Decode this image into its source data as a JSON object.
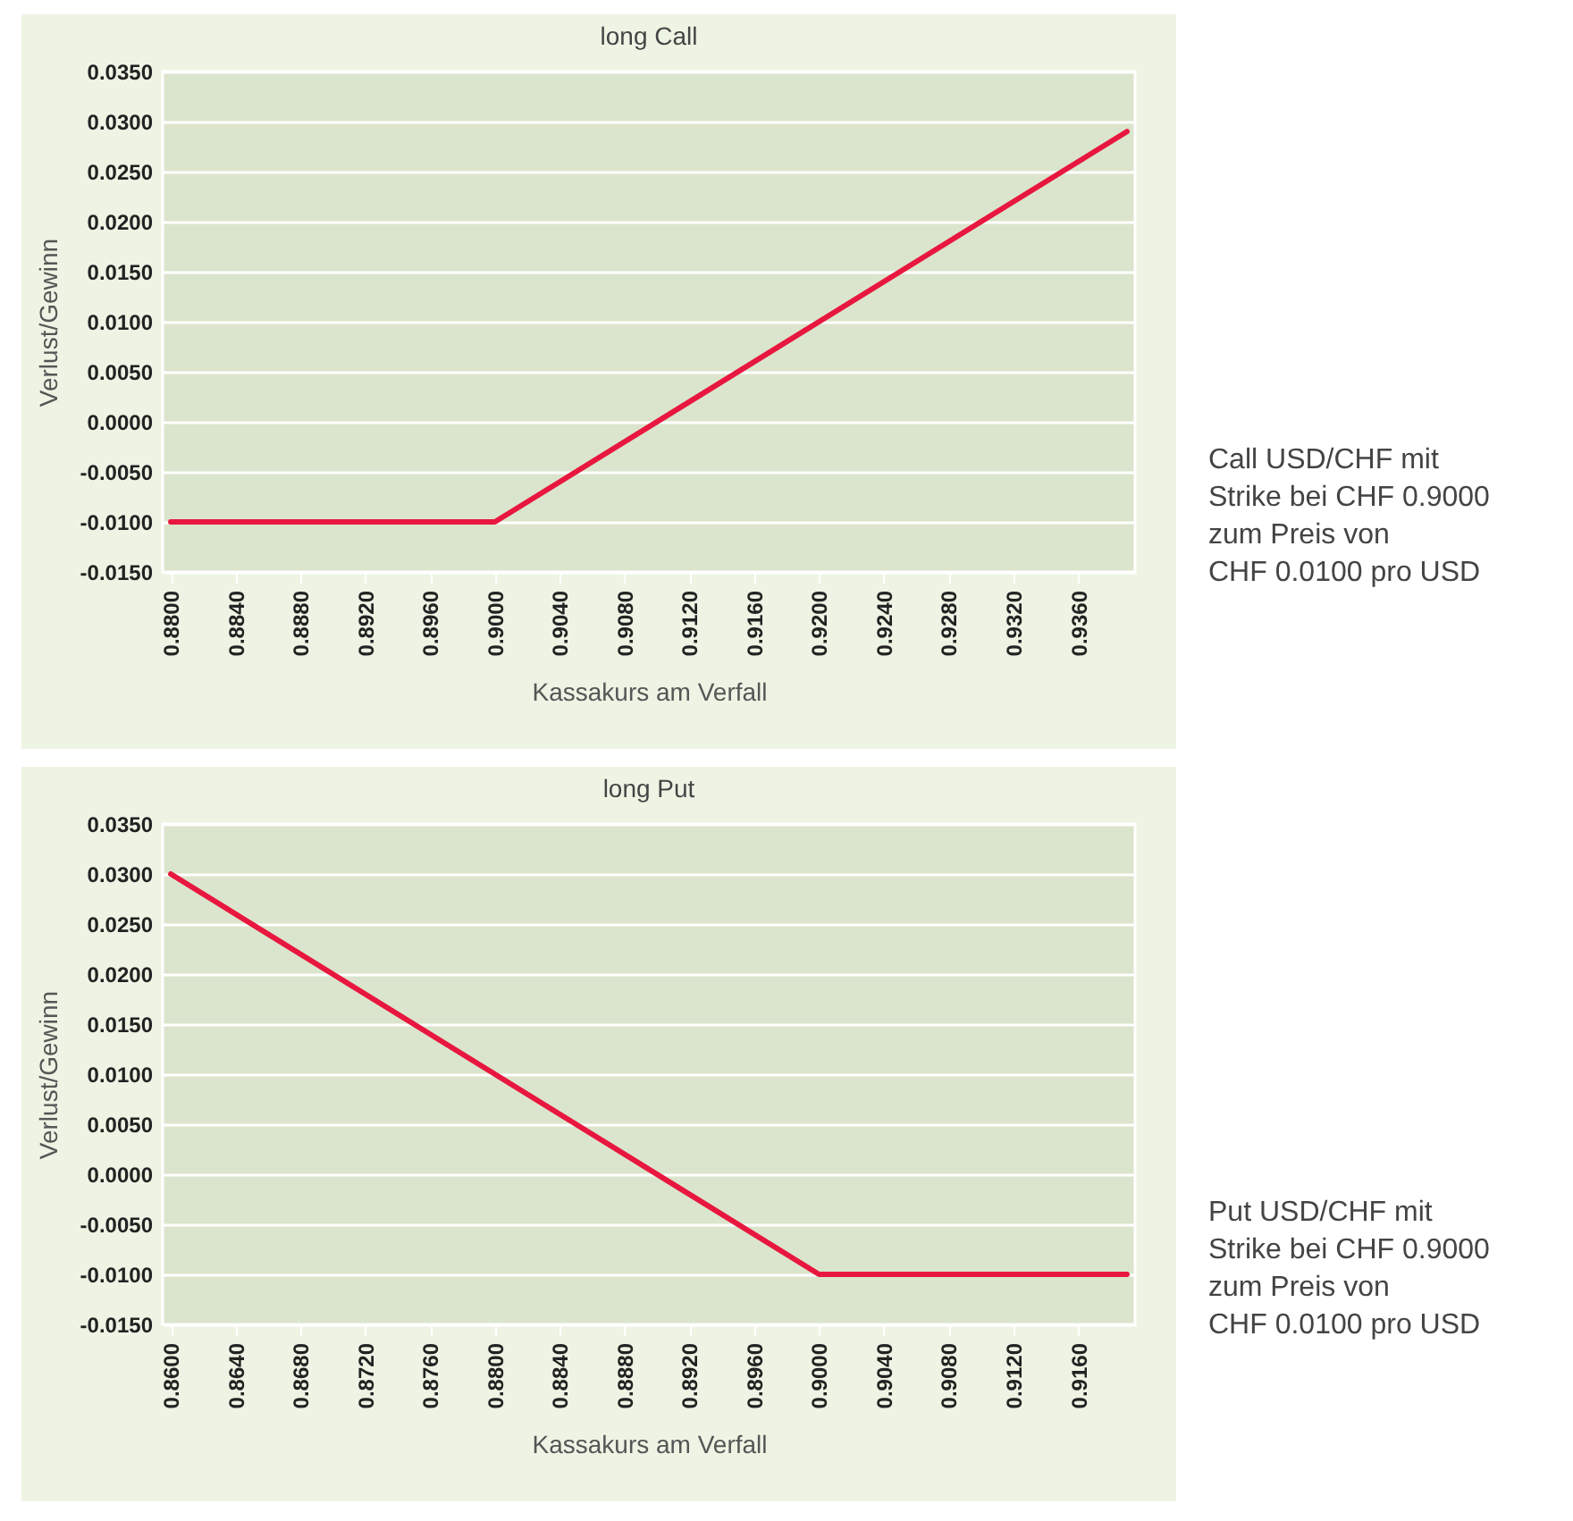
{
  "chart_data": [
    {
      "type": "line",
      "title": "long Call",
      "xlabel": "Kassakurs am Verfall",
      "ylabel": "Verlust/Gewinn",
      "x": [
        0.88,
        0.9,
        0.939
      ],
      "series": [
        {
          "color": "#e8173f",
          "values": [
            -0.01,
            -0.01,
            0.029
          ]
        }
      ],
      "xlim": [
        0.8795,
        0.9395
      ],
      "xticks": [
        {
          "value": 0.88,
          "label": "0.8800"
        },
        {
          "value": 0.884,
          "label": "0.8840"
        },
        {
          "value": 0.888,
          "label": "0.8880"
        },
        {
          "value": 0.892,
          "label": "0.8920"
        },
        {
          "value": 0.896,
          "label": "0.8960"
        },
        {
          "value": 0.9,
          "label": "0.9000"
        },
        {
          "value": 0.904,
          "label": "0.9040"
        },
        {
          "value": 0.908,
          "label": "0.9080"
        },
        {
          "value": 0.912,
          "label": "0.9120"
        },
        {
          "value": 0.916,
          "label": "0.9160"
        },
        {
          "value": 0.92,
          "label": "0.9200"
        },
        {
          "value": 0.924,
          "label": "0.9240"
        },
        {
          "value": 0.928,
          "label": "0.9280"
        },
        {
          "value": 0.932,
          "label": "0.9320"
        },
        {
          "value": 0.936,
          "label": "0.9360"
        }
      ],
      "ylim": [
        -0.015,
        0.035
      ],
      "yticks": [
        {
          "value": -0.015,
          "label": "-0.0150"
        },
        {
          "value": -0.01,
          "label": "-0.0100"
        },
        {
          "value": -0.005,
          "label": "-0.0050"
        },
        {
          "value": 0,
          "label": "0.0000"
        },
        {
          "value": 0.005,
          "label": "0.0050"
        },
        {
          "value": 0.01,
          "label": "0.0100"
        },
        {
          "value": 0.015,
          "label": "0.0150"
        },
        {
          "value": 0.02,
          "label": "0.0200"
        },
        {
          "value": 0.025,
          "label": "0.0250"
        },
        {
          "value": 0.03,
          "label": "0.0300"
        },
        {
          "value": 0.035,
          "label": "0.0350"
        }
      ],
      "grid": "y",
      "marker": "none",
      "line_style": "solid",
      "annotations": [
        "Call USD/CHF mit",
        "Strike bei CHF 0.9000",
        "zum Preis von",
        "CHF 0.0100 pro USD"
      ]
    },
    {
      "type": "line",
      "title": "long Put",
      "xlabel": "Kassakurs am Verfall",
      "ylabel": "Verlust/Gewinn",
      "x": [
        0.86,
        0.9,
        0.919
      ],
      "series": [
        {
          "color": "#e8173f",
          "values": [
            0.03,
            -0.01,
            -0.01
          ]
        }
      ],
      "xlim": [
        0.8595,
        0.9195
      ],
      "xticks": [
        {
          "value": 0.86,
          "label": "0.8600"
        },
        {
          "value": 0.864,
          "label": "0.8640"
        },
        {
          "value": 0.868,
          "label": "0.8680"
        },
        {
          "value": 0.872,
          "label": "0.8720"
        },
        {
          "value": 0.876,
          "label": "0.8760"
        },
        {
          "value": 0.88,
          "label": "0.8800"
        },
        {
          "value": 0.884,
          "label": "0.8840"
        },
        {
          "value": 0.888,
          "label": "0.8880"
        },
        {
          "value": 0.892,
          "label": "0.8920"
        },
        {
          "value": 0.896,
          "label": "0.8960"
        },
        {
          "value": 0.9,
          "label": "0.9000"
        },
        {
          "value": 0.904,
          "label": "0.9040"
        },
        {
          "value": 0.908,
          "label": "0.9080"
        },
        {
          "value": 0.912,
          "label": "0.9120"
        },
        {
          "value": 0.916,
          "label": "0.9160"
        }
      ],
      "ylim": [
        -0.015,
        0.035
      ],
      "yticks": [
        {
          "value": -0.015,
          "label": "-0.0150"
        },
        {
          "value": -0.01,
          "label": "-0.0100"
        },
        {
          "value": -0.005,
          "label": "-0.0050"
        },
        {
          "value": 0,
          "label": "0.0000"
        },
        {
          "value": 0.005,
          "label": "0.0050"
        },
        {
          "value": 0.01,
          "label": "0.0100"
        },
        {
          "value": 0.015,
          "label": "0.0150"
        },
        {
          "value": 0.02,
          "label": "0.0200"
        },
        {
          "value": 0.025,
          "label": "0.0250"
        },
        {
          "value": 0.03,
          "label": "0.0300"
        },
        {
          "value": 0.035,
          "label": "0.0350"
        }
      ],
      "grid": "y",
      "marker": "none",
      "line_style": "solid",
      "annotations": [
        "Put USD/CHF mit",
        "Strike bei CHF 0.9000",
        "zum Preis von",
        "CHF 0.0100 pro USD"
      ]
    }
  ]
}
